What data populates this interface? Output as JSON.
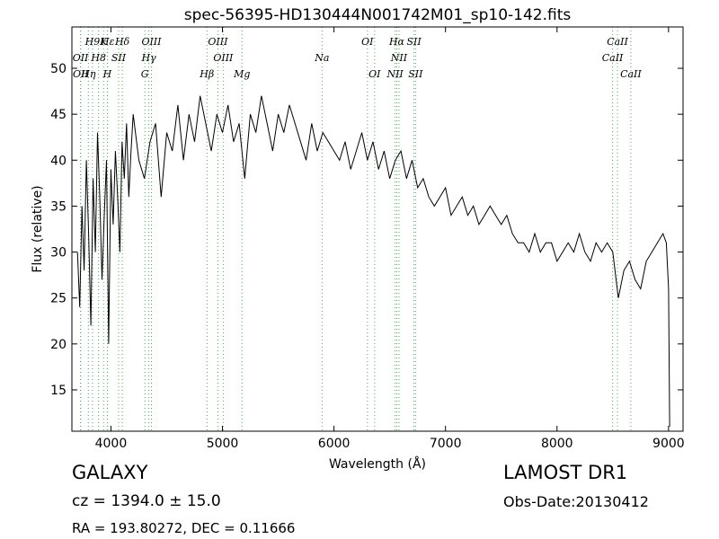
{
  "chart_data": {
    "type": "line",
    "title": "spec-56395-HD130444N001742M01_sp10-142.fits",
    "xlabel": "Wavelength (Å)",
    "ylabel": "Flux (relative)",
    "xlim": [
      3650,
      9130
    ],
    "ylim": [
      10.5,
      54.5
    ],
    "xticks": [
      4000,
      5000,
      6000,
      7000,
      8000,
      9000
    ],
    "yticks": [
      15,
      20,
      25,
      30,
      35,
      40,
      45,
      50
    ],
    "grid": false,
    "legend": "none",
    "colors": {
      "spectrum": "#000000",
      "line_markers": "#3cb44b"
    },
    "series": [
      {
        "x": [
          3700,
          3720,
          3740,
          3760,
          3780,
          3800,
          3820,
          3840,
          3860,
          3880,
          3900,
          3920,
          3940,
          3960,
          3980,
          4000,
          4020,
          4040,
          4060,
          4080,
          4100,
          4120,
          4140,
          4160,
          4180,
          4200,
          4250,
          4300,
          4350,
          4400,
          4450,
          4500,
          4550,
          4600,
          4650,
          4700,
          4750,
          4800,
          4850,
          4900,
          4950,
          5000,
          5050,
          5100,
          5150,
          5200,
          5250,
          5300,
          5350,
          5400,
          5450,
          5500,
          5550,
          5600,
          5650,
          5700,
          5750,
          5800,
          5850,
          5900,
          5950,
          6000,
          6050,
          6100,
          6150,
          6200,
          6250,
          6300,
          6350,
          6400,
          6450,
          6500,
          6550,
          6600,
          6650,
          6700,
          6750,
          6800,
          6850,
          6900,
          6950,
          7000,
          7050,
          7100,
          7150,
          7200,
          7250,
          7300,
          7350,
          7400,
          7450,
          7500,
          7550,
          7600,
          7650,
          7700,
          7750,
          7800,
          7850,
          7900,
          7950,
          8000,
          8050,
          8100,
          8150,
          8200,
          8250,
          8300,
          8350,
          8400,
          8450,
          8500,
          8550,
          8600,
          8650,
          8700,
          8750,
          8800,
          8850,
          8900,
          8950,
          8980,
          9000,
          9010
        ],
        "y": [
          30,
          24,
          35,
          28,
          40,
          32,
          22,
          38,
          30,
          43,
          36,
          27,
          34,
          40,
          20,
          39,
          33,
          41,
          36,
          30,
          42,
          38,
          44,
          36,
          41,
          45,
          40,
          38,
          42,
          44,
          36,
          43,
          41,
          46,
          40,
          45,
          42,
          47,
          44,
          41,
          45,
          43,
          46,
          42,
          44,
          38,
          45,
          43,
          47,
          44,
          41,
          45,
          43,
          46,
          44,
          42,
          40,
          44,
          41,
          43,
          42,
          41,
          40,
          42,
          39,
          41,
          43,
          40,
          42,
          39,
          41,
          38,
          40,
          41,
          38,
          40,
          37,
          38,
          36,
          35,
          36,
          37,
          34,
          35,
          36,
          34,
          35,
          33,
          34,
          35,
          34,
          33,
          34,
          32,
          31,
          31,
          30,
          32,
          30,
          31,
          31,
          29,
          30,
          31,
          30,
          32,
          30,
          29,
          31,
          30,
          31,
          30,
          25,
          28,
          29,
          27,
          26,
          29,
          30,
          31,
          32,
          31,
          26,
          11
        ]
      }
    ],
    "line_labels": [
      {
        "text": "H9",
        "wavelength": 3835,
        "row": "top"
      },
      {
        "text": "Hε",
        "wavelength": 3970,
        "row": "top"
      },
      {
        "text": "Hδ",
        "wavelength": 4102,
        "row": "top"
      },
      {
        "text": "OIII",
        "wavelength": 4363,
        "row": "top"
      },
      {
        "text": "OIII",
        "wavelength": 4959,
        "row": "top"
      },
      {
        "text": "OI",
        "wavelength": 6300,
        "row": "top"
      },
      {
        "text": "Hα",
        "wavelength": 6563,
        "row": "top"
      },
      {
        "text": "SII",
        "wavelength": 6717,
        "row": "top"
      },
      {
        "text": "CaII",
        "wavelength": 8542,
        "row": "top"
      },
      {
        "text": "OII",
        "wavelength": 3727,
        "row": "mid"
      },
      {
        "text": "H8",
        "wavelength": 3889,
        "row": "mid"
      },
      {
        "text": "SII",
        "wavelength": 4069,
        "row": "mid"
      },
      {
        "text": "Hγ",
        "wavelength": 4340,
        "row": "mid"
      },
      {
        "text": "OIII",
        "wavelength": 5007,
        "row": "mid"
      },
      {
        "text": "Na",
        "wavelength": 5893,
        "row": "mid"
      },
      {
        "text": "NII",
        "wavelength": 6583,
        "row": "mid"
      },
      {
        "text": "CaII",
        "wavelength": 8498,
        "row": "mid"
      },
      {
        "text": "OII",
        "wavelength": 3729,
        "row": "low"
      },
      {
        "text": "Hη",
        "wavelength": 3798,
        "row": "low"
      },
      {
        "text": "K",
        "wavelength": 3934,
        "row": "top"
      },
      {
        "text": "H",
        "wavelength": 3968,
        "row": "low"
      },
      {
        "text": "Hβ",
        "wavelength": 4861,
        "row": "low"
      },
      {
        "text": "G",
        "wavelength": 4304,
        "row": "low"
      },
      {
        "text": "Mg",
        "wavelength": 5175,
        "row": "low"
      },
      {
        "text": "OI",
        "wavelength": 6364,
        "row": "low"
      },
      {
        "text": "NII",
        "wavelength": 6548,
        "row": "low"
      },
      {
        "text": "SII",
        "wavelength": 6731,
        "row": "low"
      },
      {
        "text": "CaII",
        "wavelength": 8662,
        "row": "low"
      }
    ]
  },
  "info": {
    "object_class": "GALAXY",
    "redshift": "cz = 1394.0  ± 15.0",
    "coordinates": "RA = 193.80272, DEC = 0.11666",
    "survey": "LAMOST DR1",
    "obs_date": "Obs-Date:20130412"
  }
}
